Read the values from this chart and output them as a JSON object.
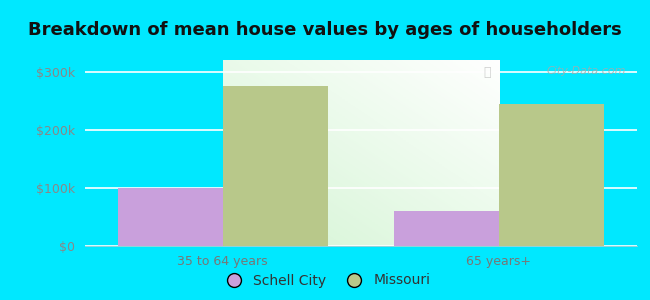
{
  "title": "Breakdown of mean house values by ages of householders",
  "categories": [
    "35 to 64 years",
    "65 years+"
  ],
  "schell_city_values": [
    100000,
    60000
  ],
  "missouri_values": [
    275000,
    245000
  ],
  "schell_city_color": "#c9a0dc",
  "missouri_color": "#b8c88a",
  "bar_width": 0.38,
  "ylim": [
    0,
    320000
  ],
  "yticks": [
    0,
    100000,
    200000,
    300000
  ],
  "ytick_labels": [
    "$0",
    "$100k",
    "$200k",
    "$300k"
  ],
  "legend_labels": [
    "Schell City",
    "Missouri"
  ],
  "background_outer": "#00e8ff",
  "title_fontsize": 13,
  "tick_fontsize": 9,
  "legend_fontsize": 10,
  "watermark_text": "City-Data.com",
  "ytick_color": "#888888",
  "xtick_color": "#777777"
}
